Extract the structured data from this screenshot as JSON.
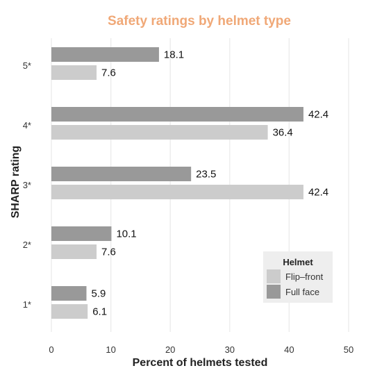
{
  "chart_data": {
    "type": "bar",
    "orientation": "horizontal",
    "title": "Safety ratings by helmet type",
    "xlabel": "Percent of helmets tested",
    "ylabel": "SHARP rating",
    "categories": [
      "5*",
      "4*",
      "3*",
      "2*",
      "1*"
    ],
    "series": [
      {
        "name": "Full face",
        "values": [
          18.1,
          42.4,
          23.5,
          10.1,
          5.9
        ],
        "color": "#999999"
      },
      {
        "name": "Flip–front",
        "values": [
          7.6,
          36.4,
          42.4,
          7.6,
          6.1
        ],
        "color": "#cccccc"
      }
    ],
    "xlim": [
      0,
      50
    ],
    "xticks": [
      0,
      10,
      20,
      30,
      40,
      50
    ],
    "grid": true,
    "legend": {
      "title": "Helmet",
      "placement": "bottom-right",
      "items": [
        "Flip–front",
        "Full face"
      ]
    },
    "colors": {
      "title": "#f0a877",
      "grid": "#ededed",
      "legend_bg": "#eeeeee"
    }
  }
}
